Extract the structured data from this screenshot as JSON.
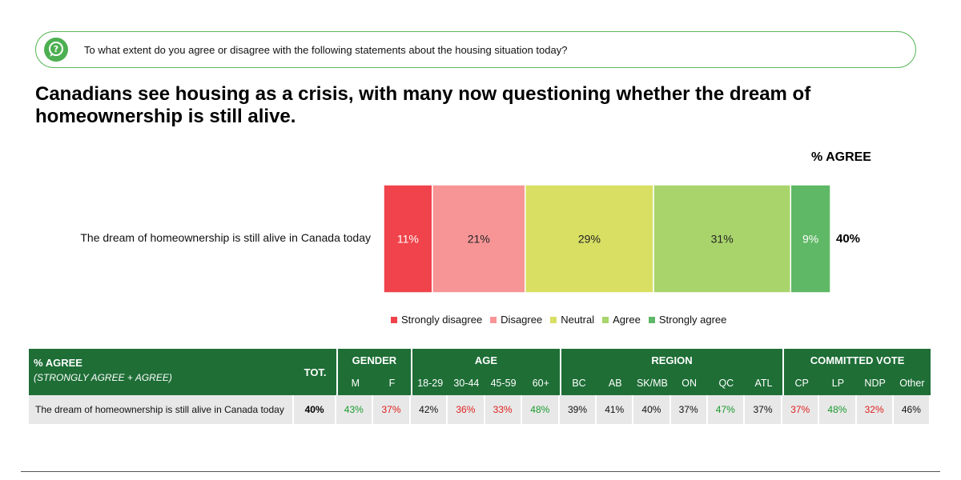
{
  "question": "To what extent do you agree or disagree with the following statements about the housing situation today?",
  "headline": "Canadians see housing as a crisis, with many now questioning whether the dream of homeownership is still alive.",
  "agree_header": "% AGREE",
  "chart_data": {
    "type": "bar",
    "orientation": "horizontal-stacked-100",
    "categories": [
      "The dream of homeownership is still alive in Canada today"
    ],
    "series": [
      {
        "name": "Strongly disagree",
        "values": [
          11
        ],
        "label": "11%",
        "color": "#f0434b"
      },
      {
        "name": "Disagree",
        "values": [
          21
        ],
        "label": "21%",
        "color": "#f79596"
      },
      {
        "name": "Neutral",
        "values": [
          29
        ],
        "label": "29%",
        "color": "#d8df63"
      },
      {
        "name": "Agree",
        "values": [
          31
        ],
        "label": "31%",
        "color": "#a9d46c"
      },
      {
        "name": "Strongly agree",
        "values": [
          9
        ],
        "label": "9%",
        "color": "#5fb865"
      }
    ],
    "agree_total": "40%",
    "legend_position": "bottom"
  },
  "table": {
    "header_label": "% AGREE",
    "header_sub": "(STRONGLY AGREE + AGREE)",
    "tot_label": "TOT.",
    "groups": [
      {
        "name": "GENDER",
        "cols": [
          "M",
          "F"
        ]
      },
      {
        "name": "AGE",
        "cols": [
          "18-29",
          "30-44",
          "45-59",
          "60+"
        ]
      },
      {
        "name": "REGION",
        "cols": [
          "BC",
          "AB",
          "SK/MB",
          "ON",
          "QC",
          "ATL"
        ]
      },
      {
        "name": "COMMITTED VOTE",
        "cols": [
          "CP",
          "LP",
          "NDP",
          "Other"
        ]
      }
    ],
    "row": {
      "label": "The dream of homeownership is still alive in Canada today",
      "tot": "40%",
      "values": [
        {
          "v": "43%",
          "c": "g"
        },
        {
          "v": "37%",
          "c": "r"
        },
        {
          "v": "42%",
          "c": "n"
        },
        {
          "v": "36%",
          "c": "r"
        },
        {
          "v": "33%",
          "c": "r"
        },
        {
          "v": "48%",
          "c": "g"
        },
        {
          "v": "39%",
          "c": "n"
        },
        {
          "v": "41%",
          "c": "n"
        },
        {
          "v": "40%",
          "c": "n"
        },
        {
          "v": "37%",
          "c": "n"
        },
        {
          "v": "47%",
          "c": "g"
        },
        {
          "v": "37%",
          "c": "n"
        },
        {
          "v": "37%",
          "c": "r"
        },
        {
          "v": "48%",
          "c": "g"
        },
        {
          "v": "32%",
          "c": "r"
        },
        {
          "v": "46%",
          "c": "n"
        }
      ]
    }
  }
}
